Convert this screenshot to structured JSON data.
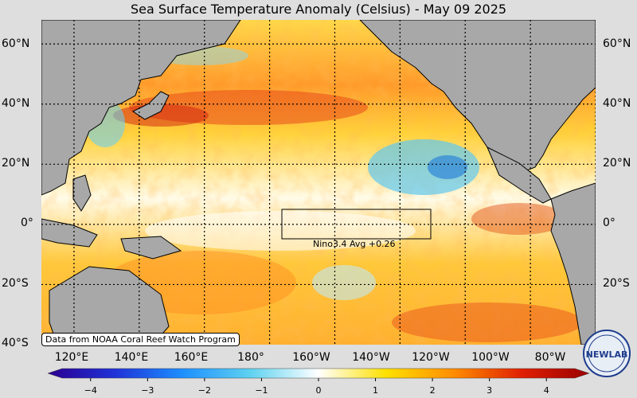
{
  "title": "Sea Surface Temperature Anomaly (Celsius) - May 09 2025",
  "lat_labels": [
    "60°N",
    "40°N",
    "20°N",
    "0°",
    "20°S",
    "40°S"
  ],
  "lon_labels": [
    "120°E",
    "140°E",
    "160°E",
    "180°",
    "160°W",
    "140°W",
    "120°W",
    "100°W",
    "80°W"
  ],
  "nino": {
    "label": "Nino3.4 Avg  +0.26",
    "lon_range": [
      "170°W",
      "120°W"
    ],
    "lat_range": [
      "5°S",
      "5°N"
    ]
  },
  "credit": "Data from NOAA Coral Reef Watch Program",
  "logo_text": "NEWLAB",
  "colorbar": {
    "ticks": [
      "−4",
      "−3",
      "−2",
      "−1",
      "0",
      "1",
      "2",
      "3",
      "4"
    ],
    "min": -4.5,
    "max": 4.5,
    "colors": [
      "#2a0090",
      "#1f32d8",
      "#1e90ff",
      "#5fd2f0",
      "#ffffff",
      "#ffe000",
      "#ff8c00",
      "#e02000",
      "#9a0000"
    ]
  },
  "colors": {
    "land": "#a8a8a8",
    "background": "#dedede",
    "grid": "#000000"
  }
}
